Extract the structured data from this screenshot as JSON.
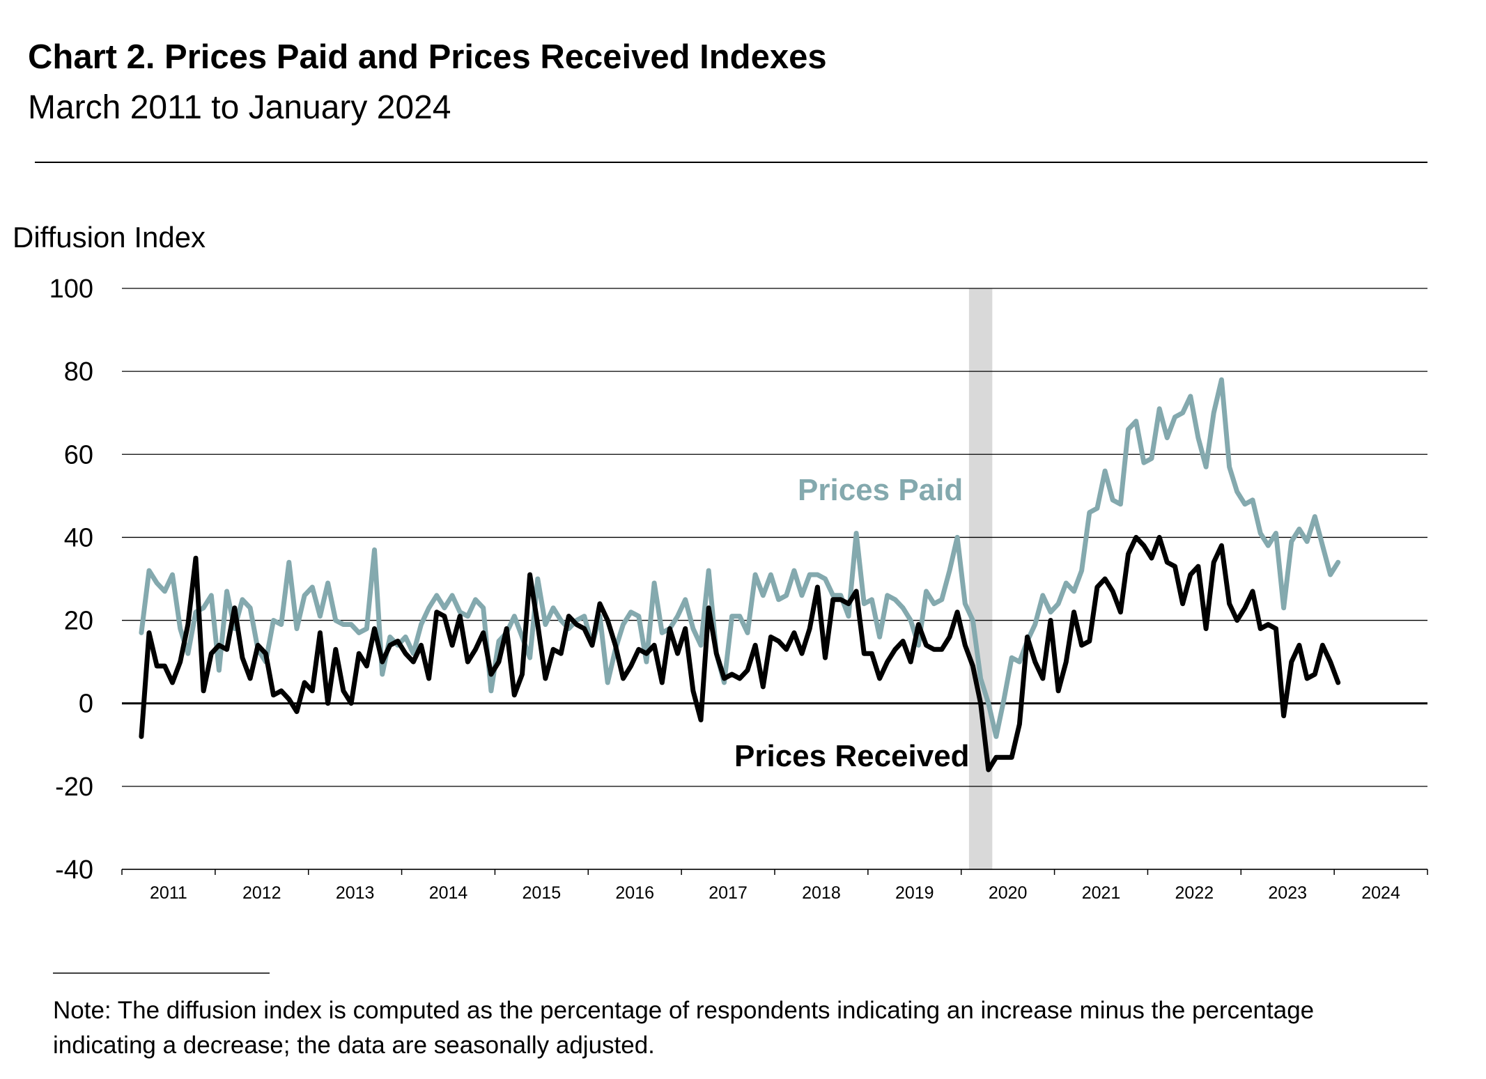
{
  "title": "Chart 2. Prices Paid and Prices Received Indexes",
  "subtitle": "March 2011 to January 2024",
  "note": [
    "Note:  The diffusion index is computed as the percentage of respondents indicating an increase minus the percentage",
    "indicating a decrease; the data are seasonally adjusted."
  ],
  "chart_data": {
    "type": "line",
    "title": "Chart 2. Prices Paid and Prices Received Indexes",
    "subtitle": "March 2011 to January 2024",
    "ylabel": "Diffusion Index",
    "xlabel": "",
    "ylim": [
      -40,
      100
    ],
    "yticks": [
      -40,
      -20,
      0,
      20,
      40,
      60,
      80,
      100
    ],
    "ytick_labels": [
      "-40",
      "-20",
      "0",
      "20",
      "40",
      "60",
      "80",
      "100"
    ],
    "xlim": [
      "2011-01",
      "2024-12"
    ],
    "xtick_labels": [
      "2011",
      "2012",
      "2013",
      "2014",
      "2015",
      "2016",
      "2017",
      "2018",
      "2019",
      "2020",
      "2021",
      "2022",
      "2023",
      "2024"
    ],
    "x_start": "2011-03",
    "x_end": "2024-01",
    "frequency": "monthly",
    "grid": "horizontal",
    "recession_shading": {
      "start": "2020-02",
      "end": "2020-04",
      "color": "#d9d9d9"
    },
    "series": [
      {
        "name": "Prices Paid",
        "color": "#84a9ae",
        "values": [
          17,
          32,
          29,
          27,
          31,
          18,
          12,
          22,
          23,
          26,
          8,
          27,
          18,
          25,
          23,
          13,
          10,
          20,
          19,
          34,
          18,
          26,
          28,
          21,
          29,
          20,
          19,
          19,
          17,
          18,
          37,
          7,
          16,
          14,
          16,
          12,
          19,
          23,
          26,
          23,
          26,
          22,
          21,
          25,
          23,
          3,
          15,
          17,
          21,
          16,
          11,
          30,
          19,
          23,
          20,
          18,
          20,
          21,
          14,
          21,
          5,
          13,
          19,
          22,
          21,
          10,
          29,
          17,
          18,
          21,
          25,
          18,
          14,
          32,
          12,
          5,
          21,
          21,
          17,
          31,
          26,
          31,
          25,
          26,
          32,
          26,
          31,
          31,
          30,
          26,
          26,
          21,
          41,
          24,
          25,
          16,
          26,
          25,
          23,
          20,
          14,
          27,
          24,
          25,
          32,
          40,
          24,
          20,
          6,
          0,
          -8,
          1,
          11,
          10,
          15,
          19,
          26,
          22,
          24,
          29,
          27,
          32,
          46,
          47,
          56,
          49,
          48,
          66,
          68,
          58,
          59,
          71,
          64,
          69,
          70,
          74,
          64,
          57,
          70,
          78,
          57,
          51,
          48,
          49,
          41,
          38,
          41,
          23,
          39,
          42,
          39,
          45,
          38,
          31,
          34
        ]
      },
      {
        "name": "Prices Received",
        "color": "#000000",
        "values": [
          -8,
          17,
          9,
          9,
          5,
          10,
          19,
          35,
          3,
          12,
          14,
          13,
          23,
          11,
          6,
          14,
          12,
          2,
          3,
          1,
          -2,
          5,
          3,
          17,
          0,
          13,
          3,
          0,
          12,
          9,
          18,
          10,
          14,
          15,
          12,
          10,
          14,
          6,
          22,
          21,
          14,
          21,
          10,
          13,
          17,
          7,
          10,
          18,
          2,
          7,
          31,
          19,
          6,
          13,
          12,
          21,
          19,
          18,
          14,
          24,
          20,
          14,
          6,
          9,
          13,
          12,
          14,
          5,
          18,
          12,
          18,
          3,
          -4,
          23,
          12,
          6,
          7,
          6,
          8,
          14,
          4,
          16,
          15,
          13,
          17,
          12,
          18,
          28,
          11,
          25,
          25,
          24,
          27,
          12,
          12,
          6,
          10,
          13,
          15,
          10,
          19,
          14,
          13,
          13,
          16,
          22,
          14,
          9,
          0,
          -16,
          -13,
          -13,
          -13,
          -5,
          16,
          10,
          6,
          20,
          3,
          10,
          22,
          14,
          15,
          28,
          30,
          27,
          22,
          36,
          40,
          38,
          35,
          40,
          34,
          33,
          24,
          31,
          33,
          18,
          34,
          38,
          24,
          20,
          23,
          27,
          18,
          19,
          18,
          -3,
          10,
          14,
          6,
          7,
          14,
          10,
          5
        ]
      }
    ]
  }
}
